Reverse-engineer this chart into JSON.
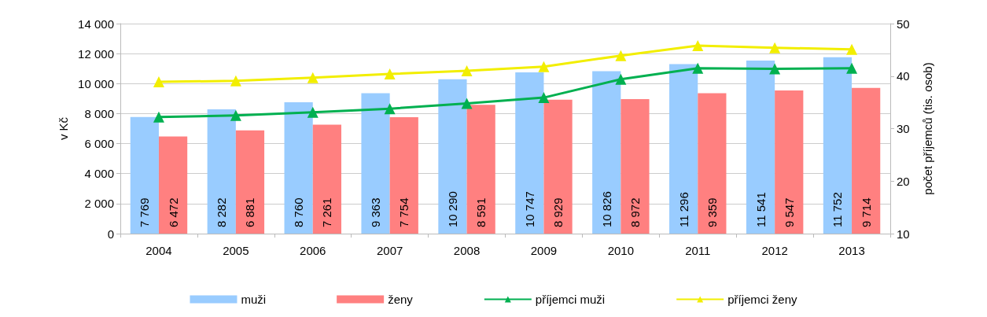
{
  "chart_data": {
    "type": "bar",
    "ylabel": "v Kč",
    "y2label": "počet příjemců (tis. osob)",
    "categories": [
      "2004",
      "2005",
      "2006",
      "2007",
      "2008",
      "2009",
      "2010",
      "2011",
      "2012",
      "2013"
    ],
    "series": [
      {
        "name": "muži",
        "color": "#99ccff",
        "values": [
          7769,
          8282,
          8760,
          9363,
          10290,
          10747,
          10826,
          11296,
          11541,
          11752
        ],
        "value_labels": [
          "7 769",
          "8 282",
          "8 760",
          "9 363",
          "10 290",
          "10 747",
          "10 826",
          "11 296",
          "11 541",
          "11 752"
        ]
      },
      {
        "name": "ženy",
        "color": "#ff8080",
        "values": [
          6472,
          6881,
          7261,
          7754,
          8591,
          8929,
          8972,
          9359,
          9547,
          9714
        ],
        "value_labels": [
          "6 472",
          "6 881",
          "7 261",
          "7 754",
          "8 591",
          "8 929",
          "8 972",
          "9 359",
          "9 547",
          "9 714"
        ]
      },
      {
        "name": "příjemci muži",
        "type": "line",
        "axis": "y2",
        "color": "#00b050",
        "values": [
          32.2,
          32.5,
          33.1,
          33.8,
          34.8,
          35.9,
          39.4,
          41.5,
          41.4,
          41.5
        ]
      },
      {
        "name": "příjemci ženy",
        "type": "line",
        "axis": "y2",
        "color": "#f2ee00",
        "values": [
          38.9,
          39.1,
          39.7,
          40.4,
          41.0,
          41.8,
          43.9,
          45.8,
          45.4,
          45.1
        ]
      }
    ],
    "ylim": [
      0,
      14000
    ],
    "yticks": [
      0,
      {
        "value": 2000,
        "label": "2 000"
      },
      {
        "value": 4000,
        "label": "4 000"
      },
      {
        "value": 6000,
        "label": "6 000"
      },
      {
        "value": 8000,
        "label": "8 000"
      },
      {
        "value": 10000,
        "label": "10 000"
      },
      {
        "value": 12000,
        "label": "12 000"
      },
      {
        "value": 14000,
        "label": "14 000"
      }
    ],
    "y2lim": [
      10,
      50
    ],
    "y2ticks": [
      10,
      20,
      30,
      40,
      50
    ],
    "grid": "y",
    "legend": "bottom",
    "marker": "triangle",
    "line_style": "solid"
  }
}
